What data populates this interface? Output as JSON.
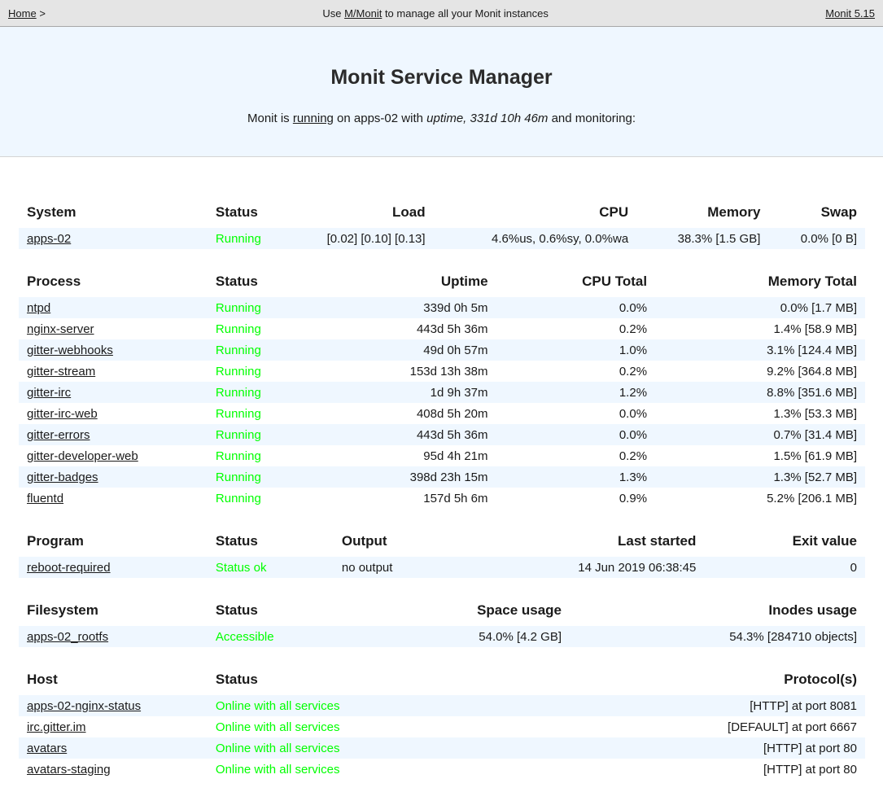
{
  "topbar": {
    "home_label": "Home",
    "separator": ">",
    "center_prefix": "Use ",
    "mmonit_label": "M/Monit",
    "center_suffix": " to manage all your Monit instances",
    "version_label": "Monit 5.15"
  },
  "header": {
    "title": "Monit Service Manager",
    "sub_prefix": "Monit is ",
    "running_link": "running",
    "sub_mid": " on apps-02 with ",
    "uptime_italic": "uptime, 331d 10h 46m",
    "sub_suffix": " and monitoring:"
  },
  "colors": {
    "status_ok_green": "#00ff00",
    "stripe_and_header_bg": "#eff7ff",
    "topbar_bg": "#e5e5e5"
  },
  "tables": {
    "system": {
      "columns": [
        "System",
        "Status",
        "Load",
        "CPU",
        "Memory",
        "Swap"
      ],
      "rows": [
        [
          "apps-02",
          "Running",
          "[0.02] [0.10] [0.13]",
          "4.6%us, 0.6%sy, 0.0%wa",
          "38.3% [1.5 GB]",
          "0.0% [0 B]"
        ]
      ]
    },
    "process": {
      "columns": [
        "Process",
        "Status",
        "Uptime",
        "CPU Total",
        "Memory Total"
      ],
      "rows": [
        [
          "ntpd",
          "Running",
          "339d 0h 5m",
          "0.0%",
          "0.0% [1.7 MB]"
        ],
        [
          "nginx-server",
          "Running",
          "443d 5h 36m",
          "0.2%",
          "1.4% [58.9 MB]"
        ],
        [
          "gitter-webhooks",
          "Running",
          "49d 0h 57m",
          "1.0%",
          "3.1% [124.4 MB]"
        ],
        [
          "gitter-stream",
          "Running",
          "153d 13h 38m",
          "0.2%",
          "9.2% [364.8 MB]"
        ],
        [
          "gitter-irc",
          "Running",
          "1d 9h 37m",
          "1.2%",
          "8.8% [351.6 MB]"
        ],
        [
          "gitter-irc-web",
          "Running",
          "408d 5h 20m",
          "0.0%",
          "1.3% [53.3 MB]"
        ],
        [
          "gitter-errors",
          "Running",
          "443d 5h 36m",
          "0.0%",
          "0.7% [31.4 MB]"
        ],
        [
          "gitter-developer-web",
          "Running",
          "95d 4h 21m",
          "0.2%",
          "1.5% [61.9 MB]"
        ],
        [
          "gitter-badges",
          "Running",
          "398d 23h 15m",
          "1.3%",
          "1.3% [52.7 MB]"
        ],
        [
          "fluentd",
          "Running",
          "157d 5h 6m",
          "0.9%",
          "5.2% [206.1 MB]"
        ]
      ]
    },
    "program": {
      "columns": [
        "Program",
        "Status",
        "Output",
        "Last started",
        "Exit value"
      ],
      "rows": [
        [
          "reboot-required",
          "Status ok",
          "no output",
          "14 Jun 2019 06:38:45",
          "0"
        ]
      ]
    },
    "filesystem": {
      "columns": [
        "Filesystem",
        "Status",
        "Space usage",
        "Inodes usage"
      ],
      "rows": [
        [
          "apps-02_rootfs",
          "Accessible",
          "54.0% [4.2 GB]",
          "54.3% [284710 objects]"
        ]
      ]
    },
    "host": {
      "columns": [
        "Host",
        "Status",
        "Protocol(s)"
      ],
      "rows": [
        [
          "apps-02-nginx-status",
          "Online with all services",
          "[HTTP] at port 8081"
        ],
        [
          "irc.gitter.im",
          "Online with all services",
          "[DEFAULT] at port 6667"
        ],
        [
          "avatars",
          "Online with all services",
          "[HTTP] at port 80"
        ],
        [
          "avatars-staging",
          "Online with all services",
          "[HTTP] at port 80"
        ]
      ]
    }
  }
}
